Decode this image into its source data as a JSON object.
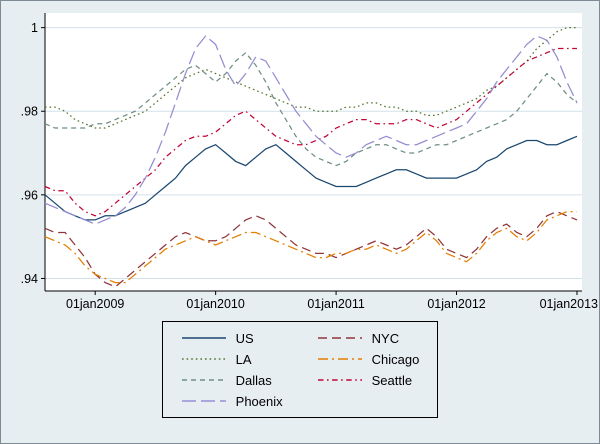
{
  "figure": {
    "background": "#e7eef2",
    "plot_background": "#ffffff",
    "grid_color": "#d3e1ea",
    "axis_color": "#000000",
    "text_color": "#000000",
    "legend_border_color": "#000000"
  },
  "chart_data": {
    "type": "line",
    "title": "",
    "xlabel": "",
    "ylabel": "",
    "x_frequency": "monthly",
    "xlim": [
      0,
      53.5
    ],
    "x_tick_positions": [
      5,
      17,
      29,
      41,
      53
    ],
    "x_tick_labels": [
      "01jan2009",
      "01jan2010",
      "01jan2011",
      "01jan2012",
      "01jan2013"
    ],
    "y_ticks": [
      0.94,
      0.96,
      0.98,
      1
    ],
    "y_tick_labels": [
      ".94",
      ".96",
      ".98",
      "1"
    ],
    "ylim": [
      0.937,
      1.0035
    ],
    "grid": "horizontal",
    "legend_position": "bottom-center",
    "legend_columns": 2,
    "series": [
      {
        "name": "US",
        "color": "#1a476f",
        "pattern": "solid",
        "values": [
          0.96,
          0.958,
          0.956,
          0.955,
          0.954,
          0.954,
          0.955,
          0.955,
          0.956,
          0.957,
          0.958,
          0.96,
          0.962,
          0.964,
          0.967,
          0.969,
          0.971,
          0.972,
          0.97,
          0.968,
          0.967,
          0.969,
          0.971,
          0.972,
          0.97,
          0.968,
          0.966,
          0.964,
          0.963,
          0.962,
          0.962,
          0.962,
          0.963,
          0.964,
          0.965,
          0.966,
          0.966,
          0.965,
          0.964,
          0.964,
          0.964,
          0.964,
          0.965,
          0.966,
          0.968,
          0.969,
          0.971,
          0.972,
          0.973,
          0.973,
          0.972,
          0.972,
          0.973,
          0.974
        ]
      },
      {
        "name": "NYC",
        "color": "#90353b",
        "pattern": "dash",
        "values": [
          0.952,
          0.951,
          0.951,
          0.948,
          0.945,
          0.941,
          0.939,
          0.938,
          0.94,
          0.942,
          0.944,
          0.946,
          0.948,
          0.95,
          0.951,
          0.95,
          0.949,
          0.949,
          0.95,
          0.952,
          0.954,
          0.955,
          0.954,
          0.952,
          0.95,
          0.948,
          0.947,
          0.946,
          0.946,
          0.945,
          0.946,
          0.947,
          0.948,
          0.949,
          0.948,
          0.947,
          0.948,
          0.95,
          0.952,
          0.95,
          0.947,
          0.946,
          0.945,
          0.947,
          0.95,
          0.952,
          0.953,
          0.951,
          0.95,
          0.952,
          0.955,
          0.956,
          0.955,
          0.954
        ]
      },
      {
        "name": "LA",
        "color": "#55752f",
        "pattern": "dot",
        "values": [
          0.981,
          0.981,
          0.98,
          0.978,
          0.977,
          0.976,
          0.976,
          0.977,
          0.978,
          0.979,
          0.98,
          0.982,
          0.984,
          0.986,
          0.988,
          0.989,
          0.99,
          0.989,
          0.988,
          0.987,
          0.986,
          0.985,
          0.984,
          0.983,
          0.982,
          0.981,
          0.981,
          0.98,
          0.98,
          0.98,
          0.981,
          0.981,
          0.982,
          0.982,
          0.981,
          0.981,
          0.98,
          0.98,
          0.979,
          0.979,
          0.98,
          0.981,
          0.982,
          0.983,
          0.985,
          0.986,
          0.988,
          0.99,
          0.992,
          0.995,
          0.997,
          0.999,
          1.0,
          1.0
        ]
      },
      {
        "name": "Chicago",
        "color": "#e37e00",
        "pattern": "dash_dot",
        "values": [
          0.95,
          0.949,
          0.948,
          0.946,
          0.943,
          0.941,
          0.94,
          0.939,
          0.939,
          0.941,
          0.943,
          0.945,
          0.947,
          0.948,
          0.949,
          0.95,
          0.949,
          0.948,
          0.949,
          0.95,
          0.951,
          0.951,
          0.95,
          0.949,
          0.948,
          0.947,
          0.946,
          0.945,
          0.945,
          0.946,
          0.946,
          0.947,
          0.947,
          0.948,
          0.947,
          0.946,
          0.947,
          0.949,
          0.951,
          0.949,
          0.946,
          0.945,
          0.944,
          0.946,
          0.949,
          0.951,
          0.952,
          0.95,
          0.949,
          0.951,
          0.954,
          0.955,
          0.956,
          0.956
        ]
      },
      {
        "name": "Dallas",
        "color": "#6e8e84",
        "pattern": "shortdash",
        "values": [
          0.977,
          0.976,
          0.976,
          0.976,
          0.976,
          0.977,
          0.977,
          0.978,
          0.979,
          0.98,
          0.982,
          0.984,
          0.986,
          0.988,
          0.99,
          0.991,
          0.989,
          0.987,
          0.989,
          0.992,
          0.994,
          0.991,
          0.987,
          0.982,
          0.978,
          0.974,
          0.971,
          0.969,
          0.968,
          0.967,
          0.968,
          0.97,
          0.971,
          0.972,
          0.972,
          0.971,
          0.97,
          0.97,
          0.971,
          0.972,
          0.972,
          0.973,
          0.974,
          0.975,
          0.976,
          0.977,
          0.978,
          0.98,
          0.983,
          0.986,
          0.989,
          0.987,
          0.984,
          0.982
        ]
      },
      {
        "name": "Seattle",
        "color": "#c10534",
        "pattern": "shortdash_dot",
        "values": [
          0.962,
          0.961,
          0.961,
          0.958,
          0.956,
          0.955,
          0.956,
          0.958,
          0.96,
          0.962,
          0.964,
          0.966,
          0.969,
          0.971,
          0.973,
          0.974,
          0.974,
          0.975,
          0.977,
          0.979,
          0.98,
          0.978,
          0.976,
          0.974,
          0.973,
          0.972,
          0.972,
          0.973,
          0.974,
          0.976,
          0.977,
          0.978,
          0.978,
          0.977,
          0.977,
          0.977,
          0.978,
          0.978,
          0.977,
          0.976,
          0.977,
          0.978,
          0.98,
          0.982,
          0.984,
          0.986,
          0.988,
          0.99,
          0.992,
          0.993,
          0.994,
          0.995,
          0.995,
          0.995
        ]
      },
      {
        "name": "Phoenix",
        "color": "#938dd2",
        "pattern": "longdash",
        "values": [
          0.958,
          0.957,
          0.956,
          0.955,
          0.954,
          0.953,
          0.954,
          0.955,
          0.957,
          0.96,
          0.964,
          0.969,
          0.975,
          0.982,
          0.989,
          0.995,
          0.998,
          0.996,
          0.99,
          0.986,
          0.989,
          0.993,
          0.992,
          0.988,
          0.984,
          0.98,
          0.977,
          0.974,
          0.972,
          0.97,
          0.969,
          0.97,
          0.972,
          0.973,
          0.974,
          0.973,
          0.972,
          0.972,
          0.973,
          0.974,
          0.975,
          0.976,
          0.977,
          0.98,
          0.983,
          0.987,
          0.99,
          0.993,
          0.996,
          0.998,
          0.997,
          0.993,
          0.987,
          0.982
        ]
      }
    ]
  }
}
